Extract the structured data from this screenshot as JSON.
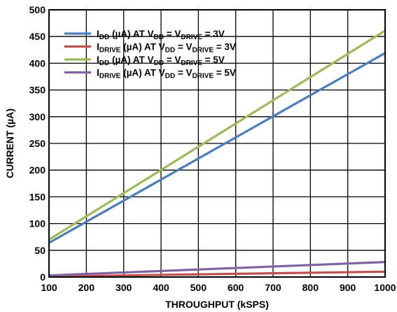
{
  "chart_data": {
    "type": "line",
    "xlabel": "THROUGHPUT (kSPS)",
    "ylabel": "CURRENT (µA)",
    "xlim": [
      100,
      1000
    ],
    "ylim": [
      0,
      500
    ],
    "xticks": [
      "100",
      "200",
      "300",
      "400",
      "500",
      "600",
      "700",
      "800",
      "900",
      "1000"
    ],
    "yticks": [
      "0",
      "50",
      "100",
      "150",
      "200",
      "250",
      "300",
      "350",
      "400",
      "450",
      "500"
    ],
    "grid": true,
    "legend_position": "top-left",
    "series": [
      {
        "name": "IDD (µA) AT VDD = VDRIVE = 3V",
        "legend": {
          "main": "I",
          "sub1": "DD",
          "mid": " (µA) AT V",
          "sub2": "DD",
          "mid2": " = V",
          "sub3": "DRIVE",
          "tail": " = 3V"
        },
        "color": "#4a7ebb",
        "x": [
          100,
          1000
        ],
        "y": [
          64,
          419
        ]
      },
      {
        "name": "IDRIVE (µA) AT VDD = VDRIVE = 3V",
        "legend": {
          "main": "I",
          "sub1": "DRIVE",
          "mid": " (µA) AT V",
          "sub2": "DD",
          "mid2": " = V",
          "sub3": "DRIVE",
          "tail": " = 3V"
        },
        "color": "#c0504d",
        "x": [
          100,
          1000
        ],
        "y": [
          1,
          10
        ]
      },
      {
        "name": "IDD (µA) AT VDD = VDRIVE = 5V",
        "legend": {
          "main": "I",
          "sub1": "DD",
          "mid": " (µA) AT V",
          "sub2": "DD",
          "mid2": " = V",
          "sub3": "DRIVE",
          "tail": " = 5V"
        },
        "color": "#9bbb59",
        "x": [
          100,
          1000
        ],
        "y": [
          70,
          461
        ]
      },
      {
        "name": "IDRIVE (µA) AT VDD = VDRIVE = 5V",
        "legend": {
          "main": "I",
          "sub1": "DRIVE",
          "mid": " (µA) AT V",
          "sub2": "DD",
          "mid2": " = V",
          "sub3": "DRIVE",
          "tail": " = 5V"
        },
        "color": "#8064a2",
        "x": [
          100,
          1000
        ],
        "y": [
          3,
          28
        ]
      }
    ]
  }
}
